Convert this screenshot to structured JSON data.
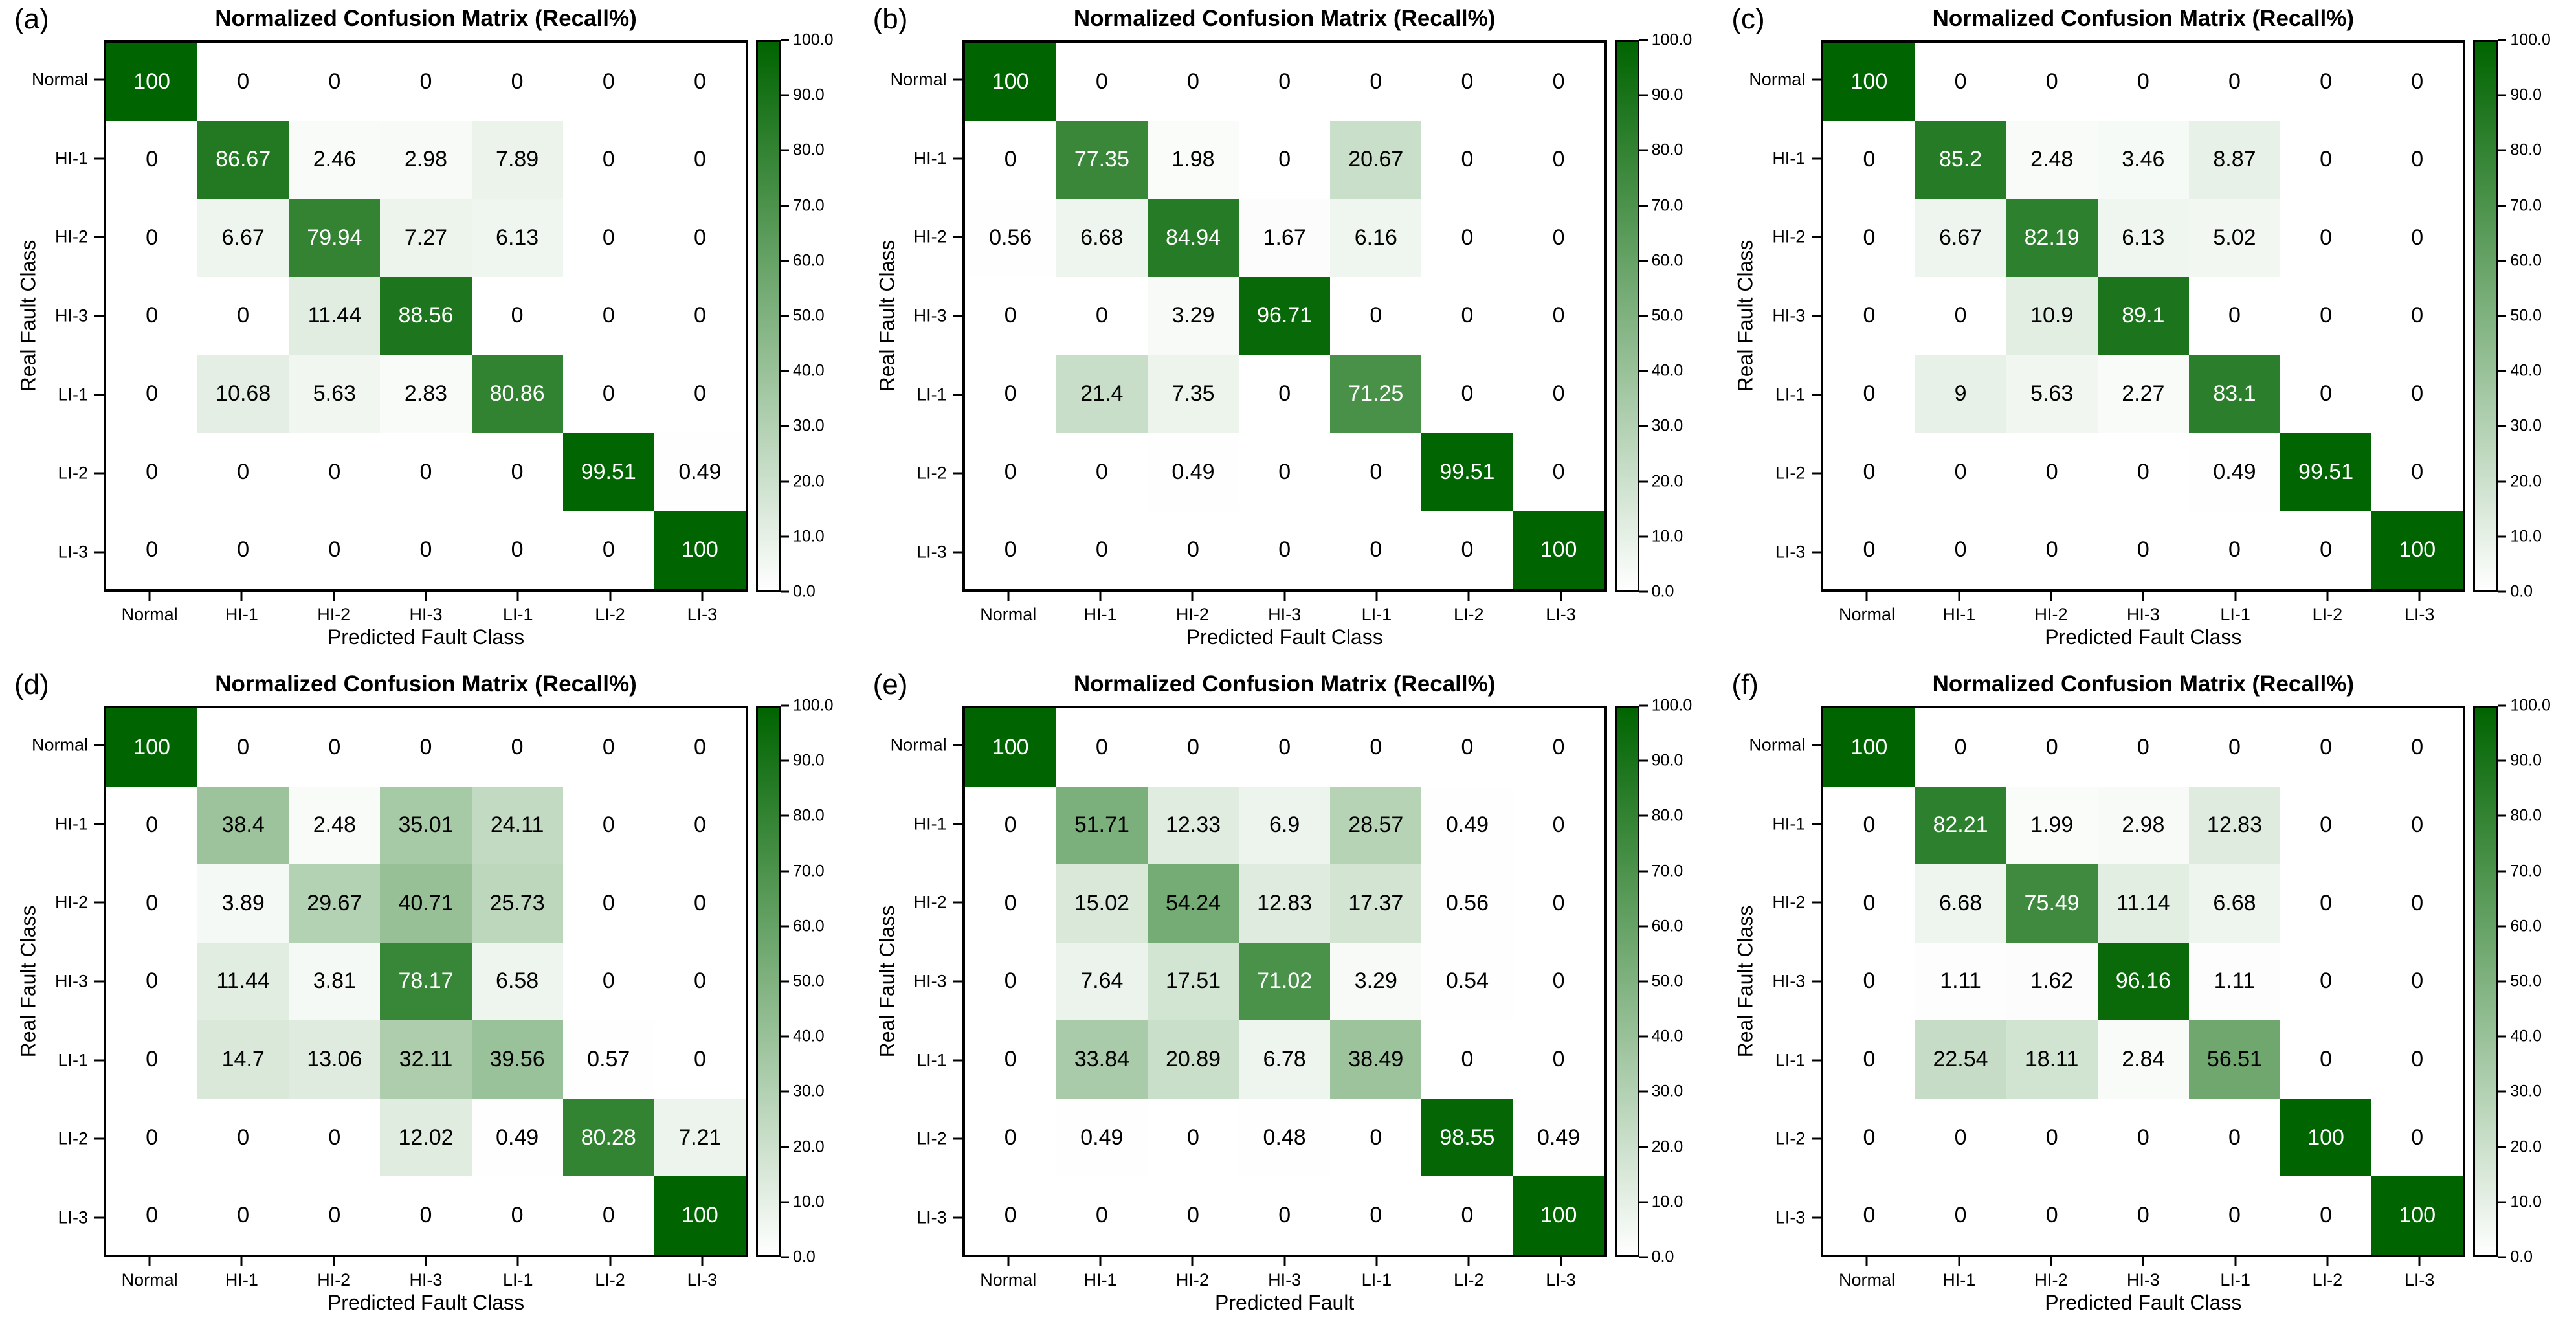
{
  "figure": {
    "background": "#ffffff",
    "colormap": {
      "low_value_color": "#ffffff",
      "high_value_color": "#006400",
      "cell_text_dark": "#000000",
      "cell_text_light": "#ffffff"
    }
  },
  "chart_data": [
    {
      "panel_label": "(a)",
      "type": "heatmap",
      "title": "Normalized Confusion Matrix (Recall%)",
      "xlabel": "Predicted Fault Class",
      "ylabel": "Real Fault Class",
      "categories": [
        "Normal",
        "HI-1",
        "HI-2",
        "HI-3",
        "LI-1",
        "LI-2",
        "LI-3"
      ],
      "matrix": [
        [
          100,
          0,
          0,
          0,
          0,
          0,
          0
        ],
        [
          0,
          86.67,
          2.46,
          2.98,
          7.89,
          0,
          0
        ],
        [
          0,
          6.67,
          79.94,
          7.27,
          6.13,
          0,
          0
        ],
        [
          0,
          0,
          11.44,
          88.56,
          0,
          0,
          0
        ],
        [
          0,
          10.68,
          5.63,
          2.83,
          80.86,
          0,
          0
        ],
        [
          0,
          0,
          0,
          0,
          0,
          99.51,
          0.49
        ],
        [
          0,
          0,
          0,
          0,
          0,
          0,
          100
        ]
      ],
      "value_range": [
        0,
        100
      ],
      "colorbar_tick_labels": [
        "100.0",
        "90.0",
        "80.0",
        "70.0",
        "60.0",
        "50.0",
        "40.0",
        "30.0",
        "20.0",
        "10.0",
        "0.0"
      ]
    },
    {
      "panel_label": "(b)",
      "type": "heatmap",
      "title": "Normalized Confusion Matrix (Recall%)",
      "xlabel": "Predicted Fault Class",
      "ylabel": "Real Fault Class",
      "categories": [
        "Normal",
        "HI-1",
        "HI-2",
        "HI-3",
        "LI-1",
        "LI-2",
        "LI-3"
      ],
      "matrix": [
        [
          100,
          0,
          0,
          0,
          0,
          0,
          0
        ],
        [
          0,
          77.35,
          1.98,
          0,
          20.67,
          0,
          0
        ],
        [
          0.56,
          6.68,
          84.94,
          1.67,
          6.16,
          0,
          0
        ],
        [
          0,
          0,
          3.29,
          96.71,
          0,
          0,
          0
        ],
        [
          0,
          21.4,
          7.35,
          0,
          71.25,
          0,
          0
        ],
        [
          0,
          0,
          0.49,
          0,
          0,
          99.51,
          0
        ],
        [
          0,
          0,
          0,
          0,
          0,
          0,
          100
        ]
      ],
      "value_range": [
        0,
        100
      ],
      "colorbar_tick_labels": [
        "100.0",
        "90.0",
        "80.0",
        "70.0",
        "60.0",
        "50.0",
        "40.0",
        "30.0",
        "20.0",
        "10.0",
        "0.0"
      ]
    },
    {
      "panel_label": "(c)",
      "type": "heatmap",
      "title": "Normalized Confusion Matrix (Recall%)",
      "xlabel": "Predicted Fault Class",
      "ylabel": "Real Fault Class",
      "categories": [
        "Normal",
        "HI-1",
        "HI-2",
        "HI-3",
        "LI-1",
        "LI-2",
        "LI-3"
      ],
      "matrix": [
        [
          100,
          0,
          0,
          0,
          0,
          0,
          0
        ],
        [
          0,
          85.2,
          2.48,
          3.46,
          8.87,
          0,
          0
        ],
        [
          0,
          6.67,
          82.19,
          6.13,
          5.02,
          0,
          0
        ],
        [
          0,
          0,
          10.9,
          89.1,
          0,
          0,
          0
        ],
        [
          0,
          9,
          5.63,
          2.27,
          83.1,
          0,
          0
        ],
        [
          0,
          0,
          0,
          0,
          0.49,
          99.51,
          0
        ],
        [
          0,
          0,
          0,
          0,
          0,
          0,
          100
        ]
      ],
      "value_range": [
        0,
        100
      ],
      "colorbar_tick_labels": [
        "100.0",
        "90.0",
        "80.0",
        "70.0",
        "60.0",
        "50.0",
        "40.0",
        "30.0",
        "20.0",
        "10.0",
        "0.0"
      ]
    },
    {
      "panel_label": "(d)",
      "type": "heatmap",
      "title": "Normalized Confusion Matrix (Recall%)",
      "xlabel": "Predicted Fault Class",
      "ylabel": "Real Fault Class",
      "categories": [
        "Normal",
        "HI-1",
        "HI-2",
        "HI-3",
        "LI-1",
        "LI-2",
        "LI-3"
      ],
      "matrix": [
        [
          100,
          0,
          0,
          0,
          0,
          0,
          0
        ],
        [
          0,
          38.4,
          2.48,
          35.01,
          24.11,
          0,
          0
        ],
        [
          0,
          3.89,
          29.67,
          40.71,
          25.73,
          0,
          0
        ],
        [
          0,
          11.44,
          3.81,
          78.17,
          6.58,
          0,
          0
        ],
        [
          0,
          14.7,
          13.06,
          32.11,
          39.56,
          0.57,
          0
        ],
        [
          0,
          0,
          0,
          12.02,
          0.49,
          80.28,
          7.21
        ],
        [
          0,
          0,
          0,
          0,
          0,
          0,
          100
        ]
      ],
      "value_range": [
        0,
        100
      ],
      "colorbar_tick_labels": [
        "100.0",
        "90.0",
        "80.0",
        "70.0",
        "60.0",
        "50.0",
        "40.0",
        "30.0",
        "20.0",
        "10.0",
        "0.0"
      ]
    },
    {
      "panel_label": "(e)",
      "type": "heatmap",
      "title": "Normalized Confusion Matrix (Recall%)",
      "xlabel": "Predicted Fault",
      "ylabel": "Real Fault Class",
      "categories": [
        "Normal",
        "HI-1",
        "HI-2",
        "HI-3",
        "LI-1",
        "LI-2",
        "LI-3"
      ],
      "matrix": [
        [
          100,
          0,
          0,
          0,
          0,
          0,
          0
        ],
        [
          0,
          51.71,
          12.33,
          6.9,
          28.57,
          0.49,
          0
        ],
        [
          0,
          15.02,
          54.24,
          12.83,
          17.37,
          0.56,
          0
        ],
        [
          0,
          7.64,
          17.51,
          71.02,
          3.29,
          0.54,
          0
        ],
        [
          0,
          33.84,
          20.89,
          6.78,
          38.49,
          0,
          0
        ],
        [
          0,
          0.49,
          0,
          0.48,
          0,
          98.55,
          0.49
        ],
        [
          0,
          0,
          0,
          0,
          0,
          0,
          100
        ]
      ],
      "value_range": [
        0,
        100
      ],
      "colorbar_tick_labels": [
        "100.0",
        "90.0",
        "80.0",
        "70.0",
        "60.0",
        "50.0",
        "40.0",
        "30.0",
        "20.0",
        "10.0",
        "0.0"
      ]
    },
    {
      "panel_label": "(f)",
      "type": "heatmap",
      "title": "Normalized Confusion Matrix (Recall%)",
      "xlabel": "Predicted Fault Class",
      "ylabel": "Real Fault Class",
      "categories": [
        "Normal",
        "HI-1",
        "HI-2",
        "HI-3",
        "LI-1",
        "LI-2",
        "LI-3"
      ],
      "matrix": [
        [
          100,
          0,
          0,
          0,
          0,
          0,
          0
        ],
        [
          0,
          82.21,
          1.99,
          2.98,
          12.83,
          0,
          0
        ],
        [
          0,
          6.68,
          75.49,
          11.14,
          6.68,
          0,
          0
        ],
        [
          0,
          1.11,
          1.62,
          96.16,
          1.11,
          0,
          0
        ],
        [
          0,
          22.54,
          18.11,
          2.84,
          56.51,
          0,
          0
        ],
        [
          0,
          0,
          0,
          0,
          0,
          100,
          0
        ],
        [
          0,
          0,
          0,
          0,
          0,
          0,
          100
        ]
      ],
      "value_range": [
        0,
        100
      ],
      "colorbar_tick_labels": [
        "100.0",
        "90.0",
        "80.0",
        "70.0",
        "60.0",
        "50.0",
        "40.0",
        "30.0",
        "20.0",
        "10.0",
        "0.0"
      ]
    }
  ]
}
